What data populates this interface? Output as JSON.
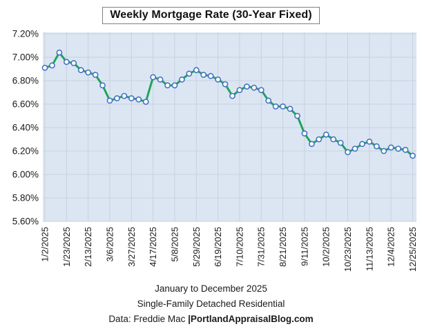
{
  "title": "Weekly Mortgage Rate (30-Year Fixed)",
  "footer": {
    "line1": "January to December 2025",
    "line2": "Single-Family Detached Residential",
    "line3_normal": "Data: Freddie Mac ",
    "line3_bold": "|PortlandAppraisalBlog.com"
  },
  "chart_data": {
    "type": "line",
    "title": "Weekly Mortgage Rate (30-Year Fixed)",
    "xlabel": "",
    "ylabel": "",
    "ylim": [
      5.6,
      7.2
    ],
    "ytick_step": 0.2,
    "ytick_labels": [
      "7.20%",
      "7.00%",
      "6.80%",
      "6.60%",
      "6.40%",
      "6.20%",
      "6.00%",
      "5.80%",
      "5.60%"
    ],
    "grid": true,
    "legend": false,
    "xtick_every": 3,
    "xtick_labels": [
      "1/2/2025",
      "1/23/2025",
      "2/13/2025",
      "3/6/2025",
      "3/27/2025",
      "4/17/2025",
      "5/8/2025",
      "5/29/2025",
      "6/19/2025",
      "7/10/2025",
      "7/31/2025",
      "8/21/2025",
      "9/11/2025",
      "10/2/2025",
      "10/23/2025",
      "11/13/2025",
      "12/4/2025",
      "12/25/2025"
    ],
    "x": [
      "1/2/2025",
      "1/9/2025",
      "1/16/2025",
      "1/23/2025",
      "1/30/2025",
      "2/6/2025",
      "2/13/2025",
      "2/20/2025",
      "2/27/2025",
      "3/6/2025",
      "3/13/2025",
      "3/20/2025",
      "3/27/2025",
      "4/3/2025",
      "4/10/2025",
      "4/17/2025",
      "4/24/2025",
      "5/1/2025",
      "5/8/2025",
      "5/15/2025",
      "5/22/2025",
      "5/29/2025",
      "6/5/2025",
      "6/12/2025",
      "6/19/2025",
      "6/26/2025",
      "7/3/2025",
      "7/10/2025",
      "7/17/2025",
      "7/24/2025",
      "7/31/2025",
      "8/7/2025",
      "8/14/2025",
      "8/21/2025",
      "8/28/2025",
      "9/4/2025",
      "9/11/2025",
      "9/18/2025",
      "9/25/2025",
      "10/2/2025",
      "10/9/2025",
      "10/16/2025",
      "10/23/2025",
      "10/30/2025",
      "11/6/2025",
      "11/13/2025",
      "11/20/2025",
      "11/27/2025",
      "12/4/2025",
      "12/11/2025",
      "12/18/2025",
      "12/25/2025"
    ],
    "series": [
      {
        "name": "30-Year Fixed Mortgage Rate (%)",
        "values": [
          6.91,
          6.93,
          7.04,
          6.96,
          6.95,
          6.89,
          6.87,
          6.85,
          6.76,
          6.63,
          6.65,
          6.67,
          6.65,
          6.64,
          6.62,
          6.83,
          6.81,
          6.76,
          6.76,
          6.81,
          6.86,
          6.89,
          6.85,
          6.84,
          6.81,
          6.77,
          6.67,
          6.72,
          6.75,
          6.74,
          6.72,
          6.63,
          6.58,
          6.58,
          6.56,
          6.5,
          6.35,
          6.26,
          6.3,
          6.34,
          6.3,
          6.27,
          6.19,
          6.22,
          6.26,
          6.28,
          6.24,
          6.2,
          6.23,
          6.22,
          6.21,
          6.16
        ]
      }
    ],
    "colors": {
      "line": "#1ea45a",
      "marker_fill": "#ffffff",
      "marker_stroke": "#4472c4",
      "plot_bg": "#dce6f2",
      "gridline": "#c6d1e2",
      "text": "#1a1a1a"
    }
  }
}
